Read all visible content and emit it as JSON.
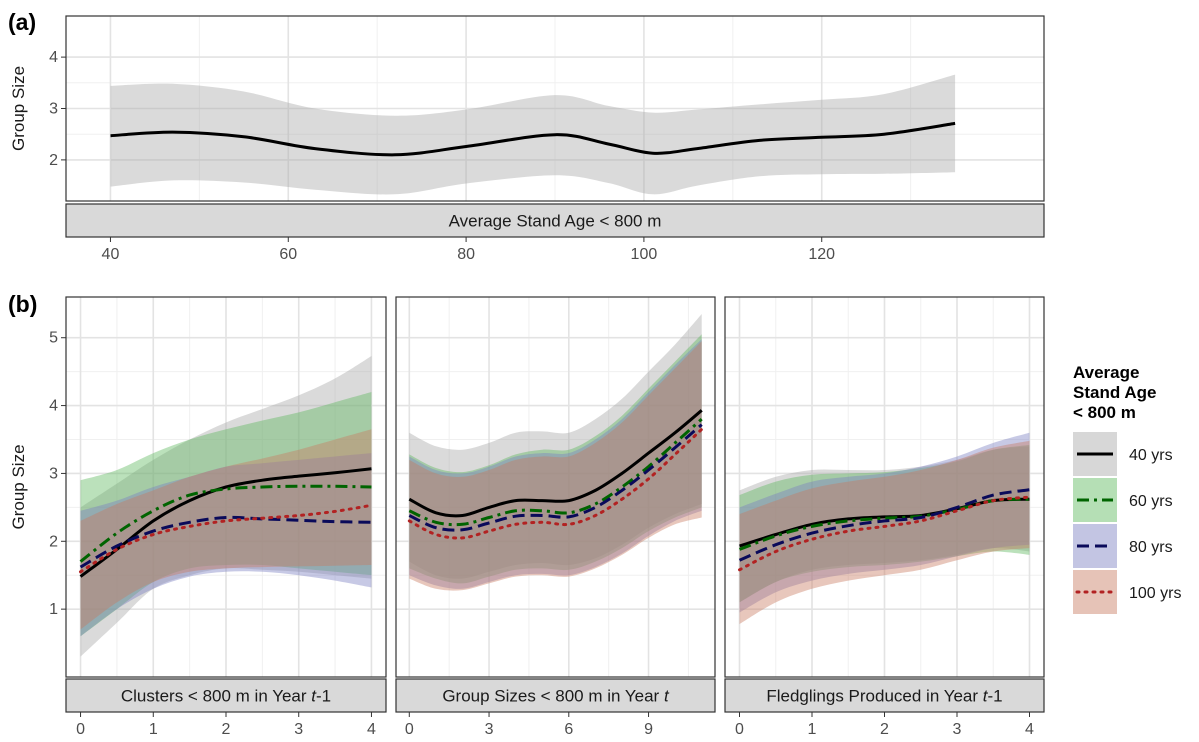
{
  "chart_data": [
    {
      "type": "line",
      "panel_label": "(a)",
      "strip": "Average Stand Age < 800 m",
      "ylabel": "Group Size",
      "xlim": [
        35,
        145
      ],
      "ylim": [
        1.2,
        4.8
      ],
      "xticks": [
        40,
        60,
        80,
        100,
        120
      ],
      "yticks": [
        2,
        3,
        4
      ],
      "grid": true,
      "series": [
        {
          "color": "#000000",
          "dash": "solid",
          "ribbon_color": "#a6a6a6",
          "x": [
            40,
            47,
            55,
            63,
            72,
            80,
            90,
            96,
            101,
            106,
            113,
            120,
            127,
            135
          ],
          "y": [
            2.47,
            2.54,
            2.45,
            2.22,
            2.1,
            2.26,
            2.49,
            2.31,
            2.13,
            2.22,
            2.38,
            2.44,
            2.5,
            2.71
          ],
          "lower": [
            1.48,
            1.6,
            1.56,
            1.42,
            1.33,
            1.54,
            1.7,
            1.55,
            1.33,
            1.5,
            1.68,
            1.72,
            1.73,
            1.76
          ],
          "upper": [
            3.44,
            3.48,
            3.33,
            3.0,
            2.86,
            2.98,
            3.26,
            3.05,
            2.92,
            2.98,
            3.08,
            3.17,
            3.28,
            3.66
          ]
        }
      ]
    },
    {
      "type": "line",
      "panel_label": "(b)",
      "ylabel": "Group Size",
      "ylim": [
        0,
        5.6
      ],
      "yticks": [
        1,
        2,
        3,
        4,
        5
      ],
      "grid": true,
      "legend": {
        "title": "Average Stand Age < 800 m",
        "title_lines": [
          "Average",
          "Stand Age",
          "< 800 m"
        ],
        "placement": "right",
        "entries": [
          {
            "label": "40 yrs",
            "color": "#000000",
            "dash": "solid",
            "fill": "#a6a6a6"
          },
          {
            "label": "60 yrs",
            "color": "#006400",
            "dash": "dashdot",
            "fill": "#5cb85c"
          },
          {
            "label": "80 yrs",
            "color": "#0a0a5a",
            "dash": "dashed",
            "fill": "#7a7fc0"
          },
          {
            "label": "100 yrs",
            "color": "#b22222",
            "dash": "dotted",
            "fill": "#c77a60"
          }
        ]
      },
      "facets": [
        {
          "strip": "Clusters < 800 m in Year t-1",
          "strip_parts": [
            "Clusters < 800 m in Year ",
            "t",
            "-1"
          ],
          "xlim": [
            -0.2,
            4.2
          ],
          "xticks": [
            0,
            1,
            2,
            3,
            4
          ],
          "series": [
            {
              "name": "40 yrs",
              "x": [
                0,
                0.5,
                1,
                1.5,
                2,
                2.5,
                3,
                3.5,
                4
              ],
              "y": [
                1.48,
                1.88,
                2.3,
                2.6,
                2.8,
                2.9,
                2.96,
                3.01,
                3.07
              ],
              "lower": [
                0.3,
                0.8,
                1.3,
                1.5,
                1.6,
                1.58,
                1.55,
                1.5,
                1.45
              ],
              "upper": [
                2.5,
                2.85,
                3.2,
                3.5,
                3.75,
                3.95,
                4.15,
                4.4,
                4.73
              ]
            },
            {
              "name": "60 yrs",
              "x": [
                0,
                0.5,
                1,
                1.5,
                2,
                2.5,
                3,
                3.5,
                4
              ],
              "y": [
                1.7,
                2.12,
                2.45,
                2.68,
                2.77,
                2.8,
                2.81,
                2.81,
                2.8
              ],
              "lower": [
                0.6,
                1.0,
                1.4,
                1.6,
                1.65,
                1.65,
                1.6,
                1.55,
                1.5
              ],
              "upper": [
                2.9,
                3.05,
                3.3,
                3.5,
                3.65,
                3.78,
                3.9,
                4.05,
                4.2
              ]
            },
            {
              "name": "80 yrs",
              "x": [
                0,
                0.5,
                1,
                1.5,
                2,
                2.5,
                3,
                3.5,
                4
              ],
              "y": [
                1.62,
                1.93,
                2.15,
                2.28,
                2.35,
                2.33,
                2.31,
                2.29,
                2.28
              ],
              "lower": [
                0.6,
                1.0,
                1.3,
                1.48,
                1.55,
                1.55,
                1.5,
                1.42,
                1.32
              ],
              "upper": [
                2.45,
                2.6,
                2.8,
                2.95,
                3.1,
                3.15,
                3.2,
                3.25,
                3.3
              ]
            },
            {
              "name": "100 yrs",
              "x": [
                0,
                0.5,
                1,
                1.5,
                2,
                2.5,
                3,
                3.5,
                4
              ],
              "y": [
                1.55,
                1.88,
                2.1,
                2.22,
                2.3,
                2.34,
                2.38,
                2.44,
                2.53
              ],
              "lower": [
                0.7,
                1.1,
                1.4,
                1.55,
                1.6,
                1.62,
                1.63,
                1.64,
                1.65
              ],
              "upper": [
                2.3,
                2.55,
                2.75,
                2.95,
                3.1,
                3.22,
                3.35,
                3.5,
                3.65
              ]
            }
          ]
        },
        {
          "strip": "Group Sizes < 800 m in Year t",
          "strip_parts": [
            "Group Sizes < 800 m in Year ",
            "t",
            ""
          ],
          "xlim": [
            -0.5,
            11.5
          ],
          "xticks": [
            0,
            3,
            6,
            9
          ],
          "series": [
            {
              "name": "40 yrs",
              "x": [
                0,
                1,
                2,
                3,
                4,
                5,
                6,
                7,
                8,
                9,
                10,
                11
              ],
              "y": [
                2.62,
                2.42,
                2.38,
                2.5,
                2.6,
                2.6,
                2.6,
                2.75,
                3.0,
                3.3,
                3.6,
                3.93
              ],
              "lower": [
                1.7,
                1.5,
                1.45,
                1.55,
                1.65,
                1.68,
                1.65,
                1.75,
                1.95,
                2.2,
                2.4,
                2.55
              ],
              "upper": [
                3.6,
                3.4,
                3.35,
                3.45,
                3.6,
                3.62,
                3.6,
                3.8,
                4.1,
                4.5,
                4.9,
                5.35
              ]
            },
            {
              "name": "60 yrs",
              "x": [
                0,
                1,
                2,
                3,
                4,
                5,
                6,
                7,
                8,
                9,
                10,
                11
              ],
              "y": [
                2.45,
                2.28,
                2.25,
                2.35,
                2.45,
                2.45,
                2.42,
                2.55,
                2.8,
                3.1,
                3.45,
                3.8
              ],
              "lower": [
                1.6,
                1.45,
                1.38,
                1.48,
                1.58,
                1.6,
                1.58,
                1.7,
                1.9,
                2.15,
                2.35,
                2.5
              ],
              "upper": [
                3.28,
                3.08,
                3.02,
                3.12,
                3.28,
                3.35,
                3.35,
                3.55,
                3.85,
                4.25,
                4.65,
                5.05
              ]
            },
            {
              "name": "80 yrs",
              "x": [
                0,
                1,
                2,
                3,
                4,
                5,
                6,
                7,
                8,
                9,
                10,
                11
              ],
              "y": [
                2.38,
                2.2,
                2.17,
                2.27,
                2.37,
                2.38,
                2.36,
                2.5,
                2.75,
                3.05,
                3.38,
                3.72
              ],
              "lower": [
                1.5,
                1.35,
                1.3,
                1.4,
                1.5,
                1.52,
                1.5,
                1.62,
                1.82,
                2.08,
                2.3,
                2.45
              ],
              "upper": [
                3.25,
                3.05,
                3.0,
                3.1,
                3.25,
                3.3,
                3.3,
                3.5,
                3.8,
                4.2,
                4.6,
                4.98
              ]
            },
            {
              "name": "100 yrs",
              "x": [
                0,
                1,
                2,
                3,
                4,
                5,
                6,
                7,
                8,
                9,
                10,
                11
              ],
              "y": [
                2.3,
                2.1,
                2.05,
                2.15,
                2.25,
                2.28,
                2.25,
                2.38,
                2.62,
                2.92,
                3.28,
                3.65
              ],
              "lower": [
                1.45,
                1.3,
                1.28,
                1.38,
                1.48,
                1.5,
                1.48,
                1.6,
                1.8,
                2.05,
                2.25,
                2.35
              ],
              "upper": [
                3.2,
                3.0,
                2.95,
                3.05,
                3.2,
                3.25,
                3.25,
                3.45,
                3.75,
                4.15,
                4.55,
                4.95
              ]
            }
          ]
        },
        {
          "strip": "Fledglings Produced in Year t-1",
          "strip_parts": [
            "Fledglings Produced in Year ",
            "t",
            "-1"
          ],
          "xlim": [
            -0.2,
            4.2
          ],
          "xticks": [
            0,
            1,
            2,
            3,
            4
          ],
          "series": [
            {
              "name": "40 yrs",
              "x": [
                0,
                0.5,
                1,
                1.5,
                2,
                2.5,
                3,
                3.5,
                4
              ],
              "y": [
                1.93,
                2.1,
                2.25,
                2.33,
                2.36,
                2.38,
                2.48,
                2.6,
                2.62
              ],
              "lower": [
                1.1,
                1.4,
                1.58,
                1.65,
                1.68,
                1.72,
                1.8,
                1.9,
                1.85
              ],
              "upper": [
                2.75,
                2.95,
                3.05,
                3.05,
                3.05,
                3.1,
                3.2,
                3.35,
                3.4
              ]
            },
            {
              "name": "60 yrs",
              "x": [
                0,
                0.5,
                1,
                1.5,
                2,
                2.5,
                3,
                3.5,
                4
              ],
              "y": [
                1.88,
                2.08,
                2.22,
                2.3,
                2.34,
                2.37,
                2.47,
                2.6,
                2.62
              ],
              "lower": [
                1.1,
                1.4,
                1.55,
                1.62,
                1.65,
                1.7,
                1.78,
                1.85,
                1.8
              ],
              "upper": [
                2.68,
                2.88,
                2.98,
                3.0,
                3.02,
                3.08,
                3.18,
                3.35,
                3.42
              ]
            },
            {
              "name": "80 yrs",
              "x": [
                0,
                0.5,
                1,
                1.5,
                2,
                2.5,
                3,
                3.5,
                4
              ],
              "y": [
                1.72,
                1.95,
                2.12,
                2.23,
                2.3,
                2.35,
                2.5,
                2.68,
                2.76
              ],
              "lower": [
                0.95,
                1.25,
                1.42,
                1.52,
                1.58,
                1.65,
                1.78,
                1.9,
                1.95
              ],
              "upper": [
                2.5,
                2.7,
                2.88,
                2.95,
                3.0,
                3.1,
                3.25,
                3.45,
                3.6
              ]
            },
            {
              "name": "100 yrs",
              "x": [
                0,
                0.5,
                1,
                1.5,
                2,
                2.5,
                3,
                3.5,
                4
              ],
              "y": [
                1.58,
                1.85,
                2.03,
                2.15,
                2.22,
                2.3,
                2.45,
                2.6,
                2.65
              ],
              "lower": [
                0.78,
                1.1,
                1.3,
                1.42,
                1.5,
                1.58,
                1.72,
                1.85,
                1.9
              ],
              "upper": [
                2.4,
                2.6,
                2.78,
                2.88,
                2.95,
                3.05,
                3.2,
                3.38,
                3.48
              ]
            }
          ]
        }
      ]
    }
  ]
}
